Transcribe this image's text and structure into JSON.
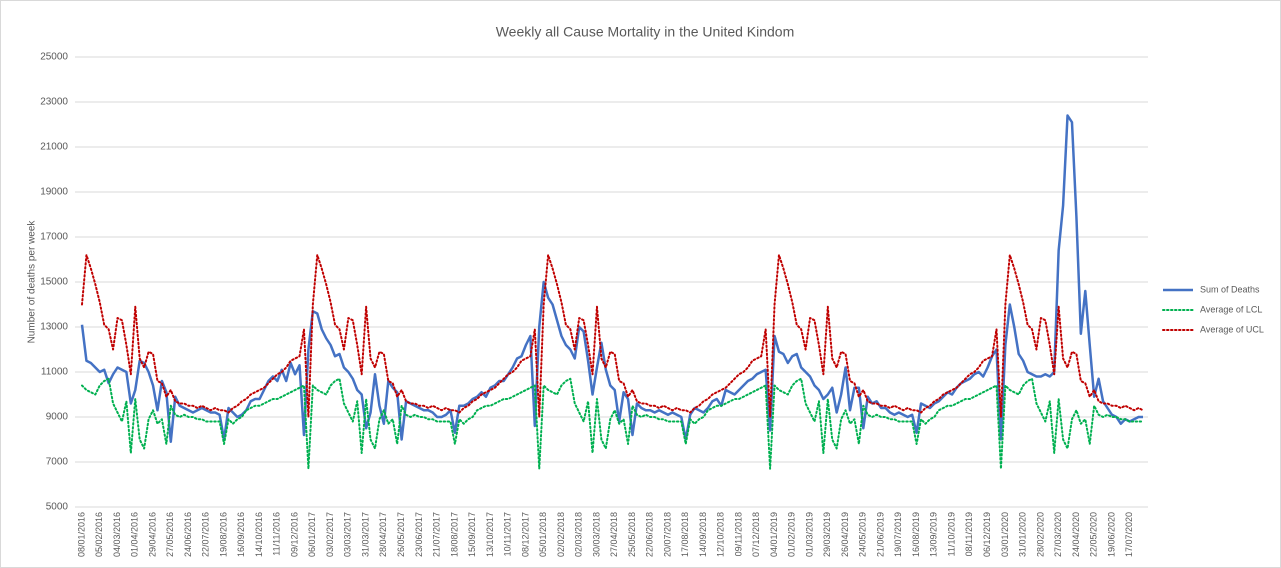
{
  "chart_data": {
    "type": "line",
    "title": "Weekly all Cause Mortality in the United Kindom",
    "y_label": "Number of deaths per week",
    "ylim": [
      5000,
      25000
    ],
    "yticks": [
      5000,
      7000,
      9000,
      11000,
      13000,
      15000,
      17000,
      19000,
      21000,
      23000,
      25000
    ],
    "grid": true,
    "legend": "right",
    "categories": [
      "08/01/2016",
      null,
      null,
      null,
      "05/02/2016",
      null,
      null,
      null,
      "04/03/2016",
      null,
      null,
      null,
      "01/04/2016",
      null,
      null,
      null,
      "29/04/2016",
      null,
      null,
      null,
      "27/05/2016",
      null,
      null,
      null,
      "24/06/2016",
      null,
      null,
      null,
      "22/07/2016",
      null,
      null,
      null,
      "19/08/2016",
      null,
      null,
      null,
      "16/09/2016",
      null,
      null,
      null,
      "14/10/2016",
      null,
      null,
      null,
      "11/11/2016",
      null,
      null,
      null,
      "09/12/2016",
      null,
      null,
      null,
      "06/01/2017",
      null,
      null,
      null,
      "03/02/2017",
      null,
      null,
      null,
      "03/03/2017",
      null,
      null,
      null,
      "31/03/2017",
      null,
      null,
      null,
      "28/04/2017",
      null,
      null,
      null,
      "26/05/2017",
      null,
      null,
      null,
      "23/06/2017",
      null,
      null,
      null,
      "21/07/2017",
      null,
      null,
      null,
      "18/08/2017",
      null,
      null,
      null,
      "15/09/2017",
      null,
      null,
      null,
      "13/10/2017",
      null,
      null,
      null,
      "10/11/2017",
      null,
      null,
      null,
      "08/12/2017",
      null,
      null,
      null,
      "05/01/2018",
      null,
      null,
      null,
      "02/02/2018",
      null,
      null,
      null,
      "02/03/2018",
      null,
      null,
      null,
      "30/03/2018",
      null,
      null,
      null,
      "27/04/2018",
      null,
      null,
      null,
      "25/05/2018",
      null,
      null,
      null,
      "22/06/2018",
      null,
      null,
      null,
      "20/07/2018",
      null,
      null,
      null,
      "17/08/2018",
      null,
      null,
      null,
      "14/09/2018",
      null,
      null,
      null,
      "12/10/2018",
      null,
      null,
      null,
      "09/11/2018",
      null,
      null,
      null,
      "07/12/2018",
      null,
      null,
      null,
      "04/01/2019",
      null,
      null,
      null,
      "01/02/2019",
      null,
      null,
      null,
      "01/03/2019",
      null,
      null,
      null,
      "29/03/2019",
      null,
      null,
      null,
      "26/04/2019",
      null,
      null,
      null,
      "24/05/2019",
      null,
      null,
      null,
      "21/06/2019",
      null,
      null,
      null,
      "19/07/2019",
      null,
      null,
      null,
      "16/08/2019",
      null,
      null,
      null,
      "13/09/2019",
      null,
      null,
      null,
      "11/10/2019",
      null,
      null,
      null,
      "08/11/2019",
      null,
      null,
      null,
      "06/12/2019",
      null,
      null,
      null,
      "03/01/2020",
      null,
      null,
      null,
      "31/01/2020",
      null,
      null,
      null,
      "28/02/2020",
      null,
      null,
      null,
      "27/03/2020",
      null,
      null,
      null,
      "24/04/2020",
      null,
      null,
      null,
      "22/05/2020",
      null,
      null,
      null,
      "19/06/2020",
      null,
      null,
      null,
      "17/07/2020",
      null,
      null,
      null
    ],
    "series": [
      {
        "name": "Sum of Deaths",
        "color": "#4472c4",
        "style": "solid",
        "values": [
          13100,
          11500,
          11400,
          11200,
          11000,
          11100,
          10500,
          10900,
          11200,
          11100,
          11000,
          9600,
          10200,
          11500,
          11400,
          11000,
          10400,
          9300,
          10600,
          10100,
          7900,
          9900,
          9500,
          9400,
          9300,
          9200,
          9300,
          9400,
          9300,
          9200,
          9200,
          9100,
          8000,
          9400,
          9200,
          9000,
          9100,
          9300,
          9700,
          9800,
          9800,
          10200,
          10600,
          10800,
          10600,
          11100,
          10600,
          11400,
          10900,
          11300,
          8200,
          12000,
          13700,
          13600,
          12900,
          12500,
          12200,
          11700,
          11800,
          11200,
          11000,
          10700,
          10200,
          10000,
          8500,
          9200,
          10900,
          9500,
          8700,
          10600,
          10300,
          10100,
          8000,
          9700,
          9600,
          9500,
          9400,
          9300,
          9300,
          9200,
          9000,
          9000,
          9100,
          9300,
          8300,
          9500,
          9500,
          9600,
          9800,
          9900,
          10100,
          9900,
          10300,
          10400,
          10600,
          10600,
          10900,
          11200,
          11600,
          11700,
          12200,
          12600,
          8600,
          13000,
          15000,
          14300,
          14000,
          13300,
          12600,
          12200,
          12000,
          11600,
          13000,
          12800,
          11500,
          10000,
          11200,
          12300,
          11100,
          10400,
          10200,
          8800,
          10100,
          9800,
          8200,
          9600,
          9400,
          9300,
          9300,
          9200,
          9300,
          9200,
          9100,
          9200,
          9100,
          9000,
          8000,
          9100,
          9400,
          9300,
          9200,
          9400,
          9700,
          9800,
          9500,
          10200,
          10100,
          10000,
          10200,
          10400,
          10600,
          10700,
          10900,
          11000,
          11100,
          8400,
          12600,
          11900,
          11800,
          11400,
          11700,
          11800,
          11200,
          11000,
          10800,
          10400,
          10200,
          9800,
          10000,
          10300,
          9200,
          10000,
          11200,
          9300,
          10300,
          10300,
          8500,
          9900,
          9600,
          9700,
          9400,
          9400,
          9200,
          9100,
          9200,
          9100,
          9000,
          9100,
          8300,
          9600,
          9500,
          9400,
          9600,
          9700,
          9900,
          10100,
          10000,
          10300,
          10500,
          10600,
          10700,
          10900,
          11000,
          10800,
          11200,
          11700,
          12000,
          8000,
          12200,
          14000,
          13000,
          11800,
          11500,
          11000,
          10900,
          10800,
          10800,
          10900,
          10800,
          11000,
          16400,
          18400,
          22400,
          22100,
          17900,
          12700,
          14600,
          12200,
          9900,
          10700,
          9700,
          9400,
          9100,
          9000,
          8700,
          8900,
          8800,
          8900,
          9000,
          9000
        ]
      },
      {
        "name": "Average of LCL",
        "color": "#00b050",
        "style": "dotted",
        "values": [
          10400,
          10200,
          10100,
          10000,
          10400,
          10600,
          10700,
          9600,
          9200,
          8800,
          9700,
          7400,
          9800,
          8000,
          7600,
          8900,
          9300,
          8700,
          8900,
          7800,
          9500,
          9100,
          9000,
          9100,
          9000,
          9000,
          8900,
          8900,
          8800,
          8800,
          8800,
          8800,
          7800,
          8900,
          8700,
          8900,
          9000,
          9300,
          9400,
          9500,
          9500,
          9600,
          9700,
          9800,
          9800,
          9900,
          10000,
          10100,
          10200,
          10300,
          10400,
          6700,
          10400,
          10200,
          10100,
          10000,
          10400,
          10600,
          10700,
          9600,
          9200,
          8800,
          9700,
          7400,
          9800,
          8000,
          7600,
          8900,
          9300,
          8700,
          8900,
          7800,
          9500,
          9100,
          9000,
          9100,
          9000,
          9000,
          8900,
          8900,
          8800,
          8800,
          8800,
          8800,
          7800,
          8900,
          8700,
          8900,
          9000,
          9300,
          9400,
          9500,
          9500,
          9600,
          9700,
          9800,
          9800,
          9900,
          10000,
          10100,
          10200,
          10300,
          10400,
          6700,
          10400,
          10200,
          10100,
          10000,
          10400,
          10600,
          10700,
          9600,
          9200,
          8800,
          9700,
          7400,
          9800,
          8000,
          7600,
          8900,
          9300,
          8700,
          8900,
          7800,
          9500,
          9100,
          9000,
          9100,
          9000,
          9000,
          8900,
          8900,
          8800,
          8800,
          8800,
          8800,
          7800,
          8900,
          8700,
          8900,
          9000,
          9300,
          9400,
          9500,
          9500,
          9600,
          9700,
          9800,
          9800,
          9900,
          10000,
          10100,
          10200,
          10300,
          10400,
          6700,
          10400,
          10200,
          10100,
          10000,
          10400,
          10600,
          10700,
          9600,
          9200,
          8800,
          9700,
          7400,
          9800,
          8000,
          7600,
          8900,
          9300,
          8700,
          8900,
          7800,
          9500,
          9100,
          9000,
          9100,
          9000,
          9000,
          8900,
          8900,
          8800,
          8800,
          8800,
          8800,
          7800,
          8900,
          8700,
          8900,
          9000,
          9300,
          9400,
          9500,
          9500,
          9600,
          9700,
          9800,
          9800,
          9900,
          10000,
          10100,
          10200,
          10300,
          10400,
          6700,
          10400,
          10200,
          10100,
          10000,
          10400,
          10600,
          10700,
          9600,
          9200,
          8800,
          9700,
          7400,
          9800,
          8000,
          7600,
          8900,
          9300,
          8700,
          8900,
          7800,
          9500,
          9100,
          9000,
          9100,
          9000,
          9000,
          8900,
          8900,
          8800,
          8800,
          8800,
          8800
        ]
      },
      {
        "name": "Average of UCL",
        "color": "#c00000",
        "style": "dotted",
        "values": [
          14000,
          16200,
          15600,
          14900,
          14100,
          13100,
          12900,
          12000,
          13400,
          13300,
          12200,
          10900,
          13900,
          11600,
          11200,
          11900,
          11800,
          10600,
          10500,
          9900,
          10200,
          9700,
          9600,
          9600,
          9500,
          9500,
          9400,
          9500,
          9400,
          9300,
          9400,
          9300,
          9300,
          9200,
          9400,
          9500,
          9700,
          9800,
          10000,
          10100,
          10200,
          10300,
          10500,
          10700,
          10900,
          11000,
          11200,
          11500,
          11600,
          11700,
          12900,
          9000,
          14000,
          16200,
          15600,
          14900,
          14100,
          13100,
          12900,
          12000,
          13400,
          13300,
          12200,
          10900,
          13900,
          11600,
          11200,
          11900,
          11800,
          10600,
          10500,
          9900,
          10200,
          9700,
          9600,
          9600,
          9500,
          9500,
          9400,
          9500,
          9400,
          9300,
          9400,
          9300,
          9300,
          9200,
          9400,
          9500,
          9700,
          9800,
          10000,
          10100,
          10200,
          10300,
          10500,
          10700,
          10900,
          11000,
          11200,
          11500,
          11600,
          11700,
          12900,
          9000,
          14000,
          16200,
          15600,
          14900,
          14100,
          13100,
          12900,
          12000,
          13400,
          13300,
          12200,
          10900,
          13900,
          11600,
          11200,
          11900,
          11800,
          10600,
          10500,
          9900,
          10200,
          9700,
          9600,
          9600,
          9500,
          9500,
          9400,
          9500,
          9400,
          9300,
          9400,
          9300,
          9300,
          9200,
          9400,
          9500,
          9700,
          9800,
          10000,
          10100,
          10200,
          10300,
          10500,
          10700,
          10900,
          11000,
          11200,
          11500,
          11600,
          11700,
          12900,
          9000,
          14000,
          16200,
          15600,
          14900,
          14100,
          13100,
          12900,
          12000,
          13400,
          13300,
          12200,
          10900,
          13900,
          11600,
          11200,
          11900,
          11800,
          10600,
          10500,
          9900,
          10200,
          9700,
          9600,
          9600,
          9500,
          9500,
          9400,
          9500,
          9400,
          9300,
          9400,
          9300,
          9300,
          9200,
          9400,
          9500,
          9700,
          9800,
          10000,
          10100,
          10200,
          10300,
          10500,
          10700,
          10900,
          11000,
          11200,
          11500,
          11600,
          11700,
          12900,
          9000,
          14000,
          16200,
          15600,
          14900,
          14100,
          13100,
          12900,
          12000,
          13400,
          13300,
          12200,
          10900,
          13900,
          11600,
          11200,
          11900,
          11800,
          10600,
          10500,
          9900,
          10200,
          9700,
          9600,
          9600,
          9500,
          9500,
          9400,
          9500,
          9400,
          9300,
          9400,
          9300
        ]
      }
    ]
  }
}
